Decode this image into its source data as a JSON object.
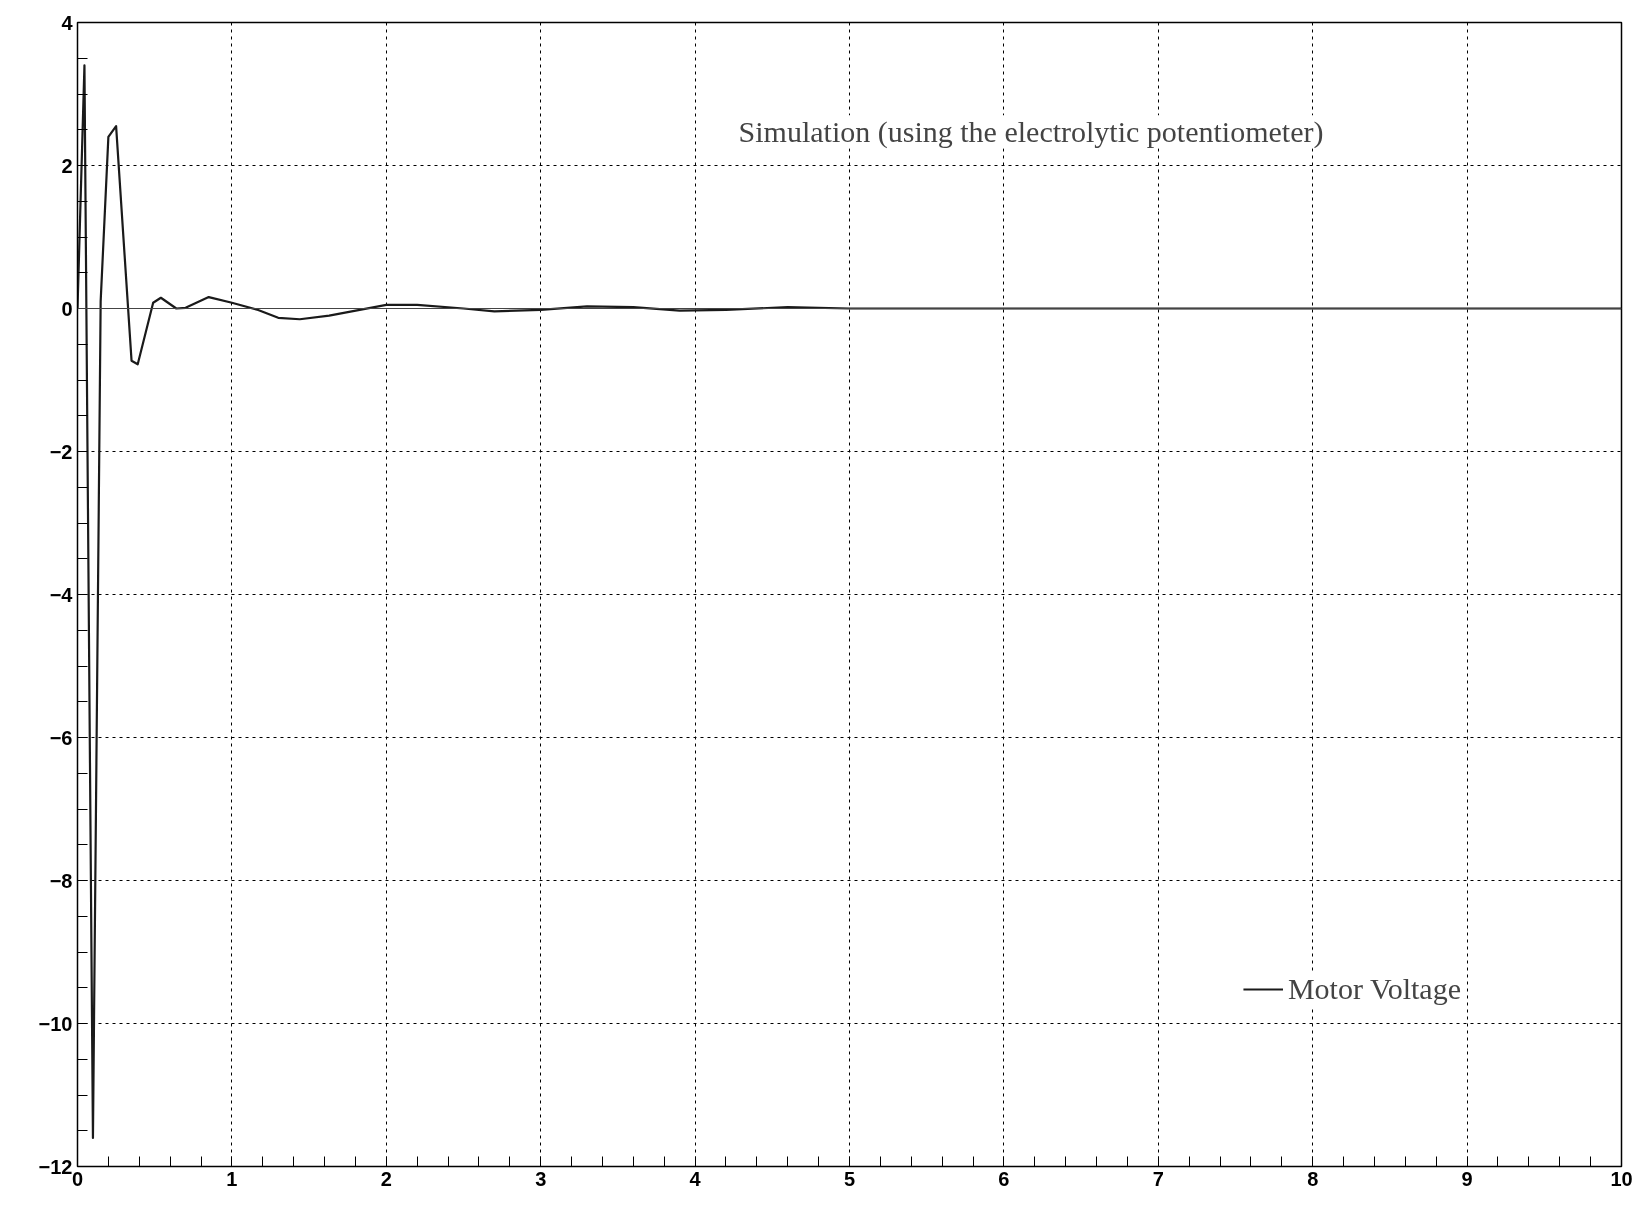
{
  "chart_data": {
    "type": "line",
    "title": "Simulation  (using the electrolytic potentiometer)",
    "x": [
      0,
      0.045,
      0.1,
      0.15,
      0.2,
      0.25,
      0.35,
      0.39,
      0.49,
      0.54,
      0.64,
      0.7,
      0.85,
      1.0,
      1.17,
      1.3,
      1.44,
      1.63,
      2.0,
      2.2,
      2.5,
      2.7,
      3.0,
      3.3,
      3.6,
      3.9,
      4.2,
      4.6,
      5.0,
      6.0,
      7.0,
      8.0,
      9.0,
      10.0
    ],
    "series": [
      {
        "name": "Motor Voltage",
        "color": "#1a1a1a",
        "values": [
          0,
          3.4,
          -11.6,
          0.1,
          2.4,
          2.55,
          -0.73,
          -0.78,
          0.08,
          0.15,
          0,
          0.01,
          0.16,
          0.08,
          -0.02,
          -0.13,
          -0.15,
          -0.1,
          0.05,
          0.05,
          0,
          -0.04,
          -0.02,
          0.03,
          0.02,
          -0.03,
          -0.02,
          0.02,
          0,
          0,
          0,
          0,
          0,
          0
        ]
      }
    ],
    "xlim": [
      0,
      10
    ],
    "ylim": [
      -12,
      4
    ],
    "xticks": [
      0,
      1,
      2,
      3,
      4,
      5,
      6,
      7,
      8,
      9,
      10
    ],
    "yticks": [
      -12,
      -10,
      -8,
      -6,
      -4,
      -2,
      0,
      2,
      4
    ],
    "ref_lines": [
      {
        "axis": "y",
        "value": 0
      }
    ],
    "grid": true,
    "legend": "bottom right",
    "marker": "none",
    "line_style": "solid"
  }
}
